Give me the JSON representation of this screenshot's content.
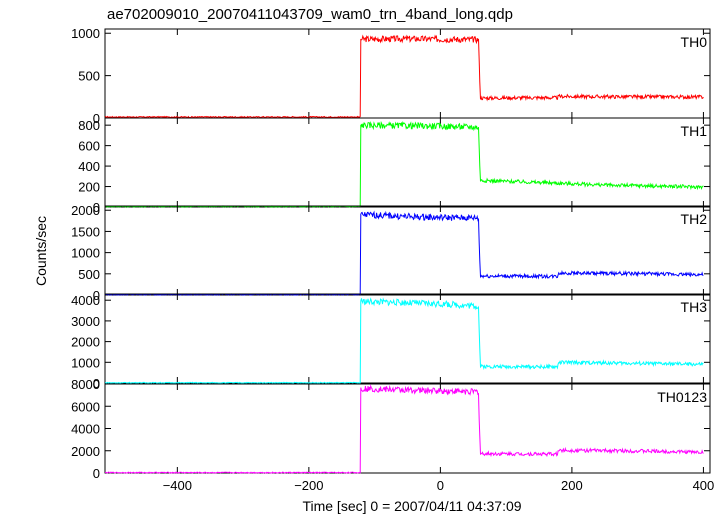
{
  "chart_data": {
    "type": "line",
    "title": "ae702009010_20070411043709_wam0_trn_4band_long.qdp",
    "xlabel": "Time [sec] 0 = 2007/04/11 04:37:09",
    "ylabel": "Counts/sec",
    "xlim": [
      -510,
      410
    ],
    "x_ticks": [
      -400,
      -200,
      0,
      200,
      400
    ],
    "x_tick_labels": [
      "−400",
      "−200",
      "0",
      "200",
      "400"
    ],
    "grid": false,
    "series": [
      {
        "name": "TH0",
        "color": "#ff0000",
        "ylim": [
          0,
          1050
        ],
        "y_ticks": [
          0,
          500,
          1000
        ],
        "points": [
          [
            -510,
            12
          ],
          [
            -122,
            12
          ],
          [
            -121,
            930
          ],
          [
            -50,
            935
          ],
          [
            0,
            930
          ],
          [
            58,
            925
          ],
          [
            59,
            650
          ],
          [
            61,
            235
          ],
          [
            150,
            240
          ],
          [
            178,
            238
          ],
          [
            180,
            255
          ],
          [
            300,
            250
          ],
          [
            400,
            248
          ]
        ]
      },
      {
        "name": "TH1",
        "color": "#00ff00",
        "ylim": [
          0,
          870
        ],
        "y_ticks": [
          0,
          200,
          400,
          600,
          800
        ],
        "points": [
          [
            -510,
            5
          ],
          [
            -122,
            5
          ],
          [
            -121,
            800
          ],
          [
            -50,
            795
          ],
          [
            0,
            790
          ],
          [
            58,
            780
          ],
          [
            59,
            560
          ],
          [
            61,
            260
          ],
          [
            150,
            240
          ],
          [
            250,
            215
          ],
          [
            400,
            195
          ]
        ]
      },
      {
        "name": "TH2",
        "color": "#0000ff",
        "ylim": [
          0,
          2100
        ],
        "y_ticks": [
          0,
          500,
          1000,
          1500,
          2000
        ],
        "points": [
          [
            -510,
            10
          ],
          [
            -122,
            10
          ],
          [
            -121,
            1900
          ],
          [
            -50,
            1850
          ],
          [
            0,
            1830
          ],
          [
            58,
            1820
          ],
          [
            59,
            1200
          ],
          [
            61,
            450
          ],
          [
            178,
            440
          ],
          [
            180,
            520
          ],
          [
            300,
            505
          ],
          [
            400,
            480
          ]
        ]
      },
      {
        "name": "TH3",
        "color": "#00ffff",
        "ylim": [
          0,
          4300
        ],
        "y_ticks": [
          0,
          1000,
          2000,
          3000,
          4000
        ],
        "points": [
          [
            -510,
            8
          ],
          [
            -122,
            8
          ],
          [
            -121,
            3950
          ],
          [
            -50,
            3880
          ],
          [
            0,
            3820
          ],
          [
            58,
            3720
          ],
          [
            59,
            2500
          ],
          [
            61,
            800
          ],
          [
            178,
            780
          ],
          [
            180,
            1000
          ],
          [
            300,
            950
          ],
          [
            400,
            900
          ]
        ]
      },
      {
        "name": "TH0123",
        "color": "#ff00ff",
        "ylim": [
          0,
          8000
        ],
        "y_ticks": [
          0,
          2000,
          4000,
          6000,
          8000
        ],
        "points": [
          [
            -510,
            35
          ],
          [
            -122,
            35
          ],
          [
            -121,
            7600
          ],
          [
            -50,
            7450
          ],
          [
            0,
            7380
          ],
          [
            58,
            7300
          ],
          [
            59,
            4800
          ],
          [
            61,
            1730
          ],
          [
            178,
            1700
          ],
          [
            180,
            2050
          ],
          [
            300,
            1980
          ],
          [
            400,
            1870
          ]
        ]
      }
    ]
  }
}
